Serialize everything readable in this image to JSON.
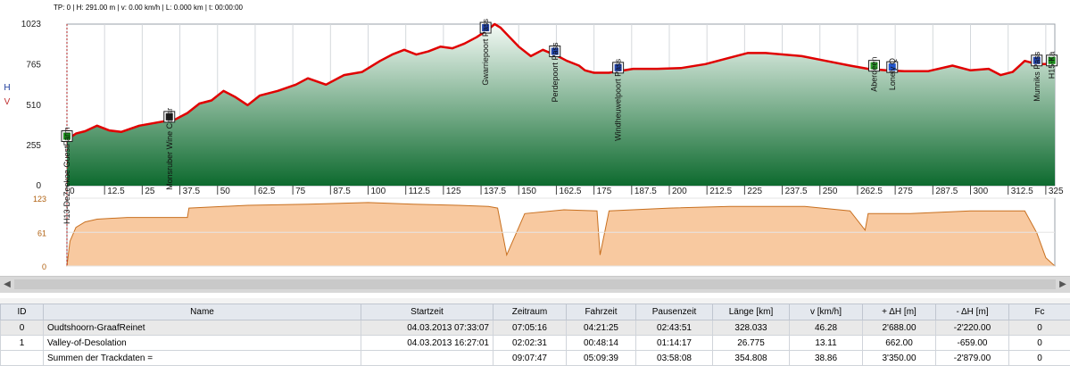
{
  "status_line": "TP: 0 | H: 291.00 m | v: 0.00 km/h | L: 0.000 km | t: 00:00:00",
  "chart_data": [
    {
      "type": "area",
      "ylim": [
        0,
        1023
      ],
      "yticks": [
        0,
        255,
        510,
        765,
        1023
      ],
      "xlim": [
        0,
        328
      ],
      "xticks": [
        0,
        12.5,
        25,
        37.5,
        50,
        62.5,
        75,
        87.5,
        100,
        112.5,
        125,
        137.5,
        150,
        162.5,
        175,
        187.5,
        200,
        212.5,
        225,
        237.5,
        250,
        262.5,
        275,
        287.5,
        300,
        312.5,
        325
      ],
      "ylabel_letters": [
        "H",
        "V"
      ],
      "series": [
        {
          "x": [
            0,
            3,
            6,
            10,
            14,
            18,
            24,
            30,
            36,
            40,
            44,
            48,
            52,
            56,
            60,
            64,
            70,
            76,
            80,
            86,
            92,
            98,
            104,
            108,
            112,
            116,
            120,
            124,
            128,
            132,
            136,
            140,
            142,
            144,
            147,
            150,
            154,
            158,
            163,
            166,
            170,
            172,
            175,
            180,
            188,
            196,
            204,
            212,
            220,
            226,
            232,
            238,
            244,
            252,
            260,
            266,
            272,
            278,
            286,
            294,
            300,
            306,
            310,
            314,
            318,
            322,
            325,
            328
          ],
          "values": [
            291,
            330,
            345,
            380,
            350,
            340,
            380,
            400,
            420,
            460,
            520,
            540,
            600,
            560,
            510,
            570,
            600,
            640,
            680,
            640,
            700,
            720,
            790,
            830,
            860,
            830,
            850,
            880,
            870,
            900,
            940,
            990,
            1023,
            1000,
            940,
            880,
            820,
            860,
            820,
            790,
            760,
            730,
            715,
            715,
            740,
            740,
            745,
            770,
            810,
            840,
            840,
            830,
            820,
            790,
            760,
            740,
            730,
            725,
            725,
            760,
            730,
            740,
            700,
            720,
            790,
            770,
            770,
            770
          ]
        }
      ]
    },
    {
      "type": "area",
      "ylim": [
        0,
        123
      ],
      "yticks": [
        0,
        61,
        123
      ],
      "xlim": [
        0,
        328
      ],
      "series": [
        {
          "x": [
            0,
            1,
            3,
            6,
            10,
            20,
            40,
            40.5,
            60,
            80,
            100,
            115,
            130,
            140,
            143,
            146,
            152,
            165,
            176,
            177,
            180,
            200,
            220,
            245,
            260,
            265,
            266,
            280,
            300,
            318,
            322,
            325,
            328
          ],
          "values": [
            0,
            45,
            70,
            80,
            85,
            88,
            88,
            105,
            110,
            112,
            115,
            112,
            110,
            108,
            105,
            20,
            95,
            102,
            100,
            20,
            100,
            105,
            108,
            108,
            100,
            65,
            95,
            95,
            100,
            100,
            60,
            15,
            0
          ]
        }
      ]
    }
  ],
  "waypoints": [
    {
      "label": "H13-DeZeekoe GuestFarm",
      "km": 0,
      "icon": "flag-icon",
      "color": "#1a8a1a"
    },
    {
      "label": "Monsruber Wine Cellar",
      "km": 34,
      "icon": "wine-cellar-icon",
      "color": "#222222"
    },
    {
      "label": "Gwarriepoort Pass",
      "km": 139,
      "icon": "pass-icon",
      "color": "#2244aa"
    },
    {
      "label": "Perdepoort Pass",
      "km": 162,
      "icon": "pass-icon",
      "color": "#2244aa"
    },
    {
      "label": "Windheuwelpoort Pass",
      "km": 183,
      "icon": "pass-icon",
      "color": "#2244aa"
    },
    {
      "label": "Aberdeen",
      "km": 268,
      "icon": "town-icon",
      "color": "#2a9a2a"
    },
    {
      "label": "Lonely Q",
      "km": 274,
      "icon": "lodge-icon",
      "color": "#2255cc"
    },
    {
      "label": "Munniks Pass",
      "km": 322,
      "icon": "pass-icon",
      "color": "#2244aa"
    },
    {
      "label": "H15-Ka",
      "km": 327,
      "icon": "flag-icon",
      "color": "#1a8a1a"
    }
  ],
  "colors": {
    "profile_line": "#e00000",
    "area_top": "#f4faf6",
    "area_bottom": "#0d6a2e",
    "speed_fill": "#f8c9a0",
    "speed_line": "#c87020"
  },
  "scroll": {
    "left_arrow": "◀",
    "right_arrow": "▶"
  },
  "table": {
    "headers": [
      "ID",
      "Name",
      "Startzeit",
      "Zeitraum",
      "Fahrzeit",
      "Pausenzeit",
      "Länge [km]",
      "v [km/h]",
      "+ ΔH [m]",
      "- ΔH [m]",
      "Fc"
    ],
    "rows": [
      [
        "0",
        "Oudtshoorn-GraafReinet",
        "04.03.2013 07:33:07",
        "07:05:16",
        "04:21:25",
        "02:43:51",
        "328.033",
        "46.28",
        "2'688.00",
        "-2'220.00",
        "0"
      ],
      [
        "1",
        "Valley-of-Desolation",
        "04.03.2013 16:27:01",
        "02:02:31",
        "00:48:14",
        "01:14:17",
        "26.775",
        "13.11",
        "662.00",
        "-659.00",
        "0"
      ],
      [
        "",
        "Summen der Trackdaten =",
        "",
        "09:07:47",
        "05:09:39",
        "03:58:08",
        "354.808",
        "38.86",
        "3'350.00",
        "-2'879.00",
        "0"
      ]
    ]
  }
}
